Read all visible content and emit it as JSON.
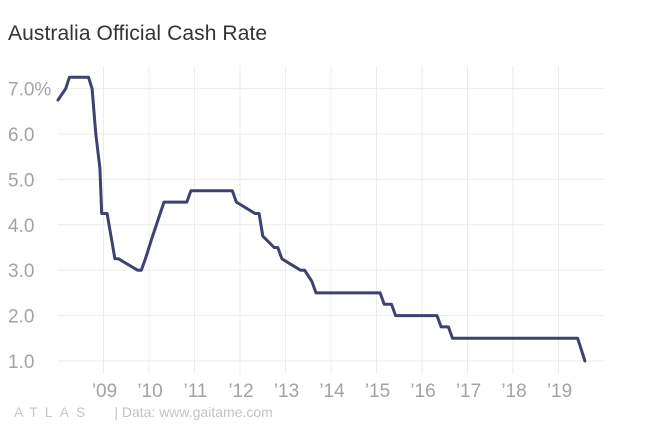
{
  "title": "Australia Official Cash Rate",
  "footer": {
    "logo": "ATLAS",
    "source": "| Data: www.gaitame.com"
  },
  "colors": {
    "line": "#3d4270",
    "grid": "#ececec",
    "tick_text": "#a3a3a3"
  },
  "chart_data": {
    "type": "line",
    "title": "Australia Official Cash Rate",
    "xlabel": "",
    "ylabel": "",
    "xlim": [
      2008.0,
      2020.0
    ],
    "ylim": [
      0.8,
      7.5
    ],
    "grid": true,
    "y_ticks": [
      7,
      6,
      5,
      4,
      3,
      2,
      1
    ],
    "y_tick_labels": [
      "7.0%",
      "6.0",
      "5.0",
      "4.0",
      "3.0",
      "2.0",
      "1.0"
    ],
    "x_ticks": [
      2009,
      2010,
      2011,
      2012,
      2013,
      2014,
      2015,
      2016,
      2017,
      2018,
      2019
    ],
    "x_tick_labels": [
      "’09",
      "’10",
      "’11",
      "’12",
      "’13",
      "’14",
      "’15",
      "’16",
      "’17",
      "’18",
      "’19"
    ],
    "series": [
      {
        "x": [
          2008.0,
          2008.17,
          2008.25,
          2008.42,
          2008.67,
          2008.75,
          2008.83,
          2008.92,
          2008.96,
          2009.08,
          2009.25,
          2009.33,
          2009.75,
          2009.83,
          2009.92,
          2010.08,
          2010.33,
          2010.42,
          2010.83,
          2010.92,
          2011.83,
          2011.92,
          2012.33,
          2012.42,
          2012.5,
          2012.75,
          2012.83,
          2012.92,
          2013.33,
          2013.42,
          2013.58,
          2013.67,
          2015.08,
          2015.17,
          2015.33,
          2015.42,
          2016.33,
          2016.42,
          2016.58,
          2016.67,
          2019.42,
          2019.5,
          2019.58
        ],
        "y": [
          6.75,
          7.0,
          7.25,
          7.25,
          7.25,
          7.0,
          6.0,
          5.25,
          4.25,
          4.25,
          3.25,
          3.25,
          3.0,
          3.0,
          3.25,
          3.75,
          4.5,
          4.5,
          4.5,
          4.75,
          4.75,
          4.5,
          4.25,
          4.25,
          3.75,
          3.5,
          3.5,
          3.25,
          3.0,
          3.0,
          2.75,
          2.5,
          2.5,
          2.25,
          2.25,
          2.0,
          2.0,
          1.75,
          1.75,
          1.5,
          1.5,
          1.25,
          1.0
        ]
      }
    ]
  }
}
